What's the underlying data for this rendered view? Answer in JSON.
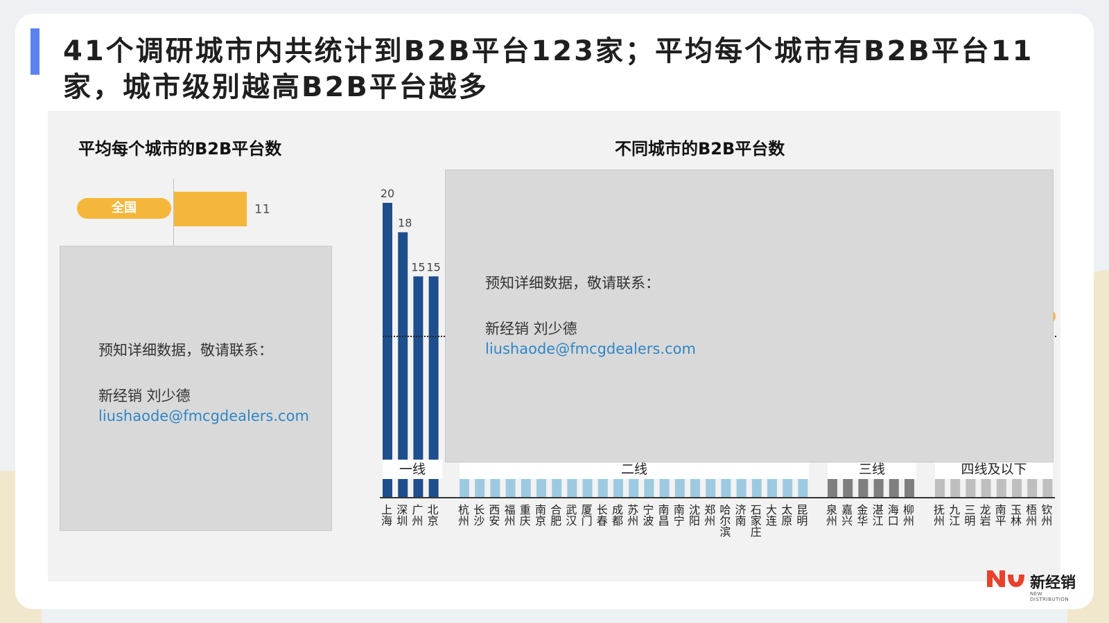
{
  "page": {
    "title": "41个调研城市内共统计到B2B平台123家；平均每个城市有B2B平台11家，城市级别越高B2B平台越多"
  },
  "overlay": {
    "line1": "预知详细数据，敬请联系：",
    "line2": "新经销 刘少德",
    "email": "liushaode@fmcgdealers.com"
  },
  "logo": {
    "cn": "新经销",
    "en": "NEW DISTRIBUTION"
  },
  "colors": {
    "accent": "#5b82ee",
    "avg_bar": "#f5b73b",
    "tier1": "#1f4e8c",
    "tier2": "#9dcae1",
    "tier3": "#7f7f7f",
    "tier4": "#bfbfbf"
  },
  "chart_data": [
    {
      "type": "bar",
      "title": "平均每个城市的B2B平台数",
      "orientation": "horizontal",
      "categories": [
        "全国"
      ],
      "values": [
        11
      ],
      "value_labels": [
        "11"
      ]
    },
    {
      "type": "bar",
      "title": "不同城市的B2B平台数",
      "orientation": "vertical",
      "groups": [
        {
          "name": "一线",
          "color_key": "tier1",
          "categories": [
            "上海",
            "深圳",
            "广州",
            "北京"
          ],
          "values": [
            20,
            18,
            15,
            15
          ],
          "value_labels": [
            "20",
            "18",
            "15",
            "15"
          ]
        },
        {
          "name": "二线",
          "color_key": "tier2",
          "categories": [
            "杭州",
            "长沙",
            "西安",
            "福州",
            "重庆",
            "南京",
            "合肥",
            "武汉",
            "厦门",
            "长春",
            "成都",
            "苏州",
            "宁波",
            "南昌",
            "南宁",
            "沈阳",
            "郑州",
            "哈尔滨",
            "济南",
            "石家庄",
            "大连",
            "太原",
            "昆明"
          ]
        },
        {
          "name": "三线",
          "color_key": "tier3",
          "categories": [
            "泉州",
            "嘉兴",
            "金华",
            "湛江",
            "海口",
            "柳州"
          ]
        },
        {
          "name": "四线及以下",
          "color_key": "tier4",
          "categories": [
            "抚州",
            "九江",
            "三明",
            "龙岩",
            "南平",
            "玉林",
            "梧州",
            "钦州"
          ]
        }
      ],
      "ylim": [
        0,
        20
      ]
    }
  ]
}
